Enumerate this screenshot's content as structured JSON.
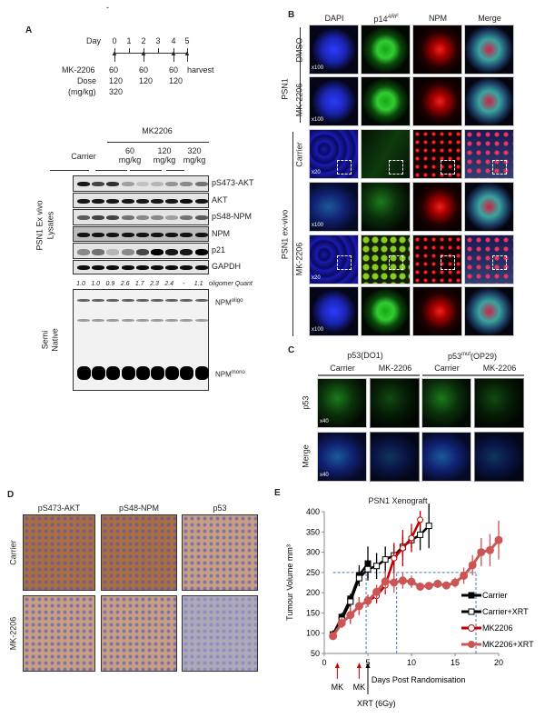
{
  "stray_mark": "-",
  "panelA": {
    "letter": "A",
    "timeline": {
      "day_label": "Day",
      "days": [
        "0",
        "1",
        "2",
        "3",
        "4",
        "5"
      ],
      "drug_label": "MK-2206",
      "dose_label": "Dose",
      "unit_label": "(mg/kg)",
      "doses": [
        [
          "60",
          "120",
          "320"
        ],
        [
          "60",
          "120"
        ],
        [
          "60",
          "120"
        ]
      ],
      "harvest": "harvest"
    },
    "group_header": "MK2206",
    "groups": [
      "Carrier",
      "60\nmg/kg",
      "120\nmg/kg",
      "320\nmg/kg"
    ],
    "side_label_1": "PSN1 Ex vivo",
    "side_label_2": "Lysates",
    "blots": [
      "pS473-AKT",
      "AKT",
      "pS48-NPM",
      "NPM",
      "p21",
      "GAPDH"
    ],
    "band_intensity": [
      [
        0.9,
        0.7,
        0.8,
        0.3,
        0.15,
        0.2,
        0.35,
        0.4,
        0.5
      ],
      [
        0.9,
        0.9,
        0.9,
        0.9,
        0.9,
        0.9,
        0.9,
        0.95,
        0.9
      ],
      [
        0.6,
        0.7,
        0.7,
        0.5,
        0.4,
        0.4,
        0.3,
        0.5,
        0.6
      ],
      [
        0.9,
        0.9,
        0.9,
        0.9,
        0.9,
        0.9,
        0.9,
        0.9,
        0.9
      ],
      [
        0.4,
        0.5,
        0.2,
        0.4,
        0.7,
        1,
        0.9,
        0.9,
        1
      ],
      [
        0.95,
        0.95,
        0.95,
        0.95,
        0.95,
        0.95,
        0.95,
        0.95,
        0.95
      ]
    ],
    "quant": [
      "1.0",
      "1.0",
      "0.9",
      "2.6",
      "1.7",
      "2.3",
      "2.4",
      "-",
      "1.1"
    ],
    "quant_label": "oligomer  Quant",
    "native_label_1": "Semi",
    "native_label_2": "Native",
    "npm_oligo": "NPM",
    "npm_oligo_sup": "oligo",
    "npm_mono": "NPM",
    "npm_mono_sup": "mono"
  },
  "panelB": {
    "letter": "B",
    "columns": [
      "DAPI",
      "p14",
      "NPM",
      "Merge"
    ],
    "p14_sup": "ARF",
    "cell_label": "PSN1",
    "exvivo_label": "PSN1  ex-vivo",
    "row_groups": [
      "DMSO",
      "MK-2206",
      "Carrier",
      "MK-2206"
    ],
    "magnifications": [
      "x100",
      "x100",
      "x20",
      "x100",
      "x20",
      "x100"
    ]
  },
  "panelC": {
    "letter": "C",
    "antibodies": [
      "p53(DO1)",
      "p53",
      "(OP29)"
    ],
    "mut_sup": "mut",
    "columns": [
      "Carrier",
      "MK-2206",
      "Carrier",
      "MK-2206"
    ],
    "rows": [
      "p53",
      "Merge"
    ],
    "magnification": "x40"
  },
  "panelD": {
    "letter": "D",
    "columns": [
      "pS473-AKT",
      "pS48-NPM",
      "p53"
    ],
    "rows": [
      "Carrier",
      "MK-2206"
    ]
  },
  "panelE": {
    "letter": "E",
    "chart_data": {
      "type": "line",
      "title": "PSN1  Xenograft",
      "xlabel": "Days Post Randomisation",
      "ylabel": "Tumour Volume mm³",
      "xlim": [
        0,
        20
      ],
      "ylim": [
        50,
        400
      ],
      "xticks": [
        0,
        5,
        10,
        15,
        20
      ],
      "yticks": [
        50,
        100,
        150,
        200,
        250,
        300,
        350,
        400
      ],
      "legend": "right",
      "series": [
        {
          "name": "Carrier",
          "color": "#000000",
          "marker": "filled-square",
          "x": [
            1,
            2,
            3,
            4,
            5
          ],
          "y": [
            97,
            140,
            185,
            243,
            272
          ],
          "err": [
            10,
            10,
            12,
            25,
            42
          ]
        },
        {
          "name": "Carrier+XRT",
          "color": "#000000",
          "marker": "open-square",
          "x": [
            1,
            2,
            3,
            4,
            5,
            6,
            7,
            8,
            9,
            10,
            11,
            12
          ],
          "y": [
            97,
            133,
            178,
            236,
            258,
            266,
            282,
            292,
            313,
            330,
            343,
            365
          ],
          "err": [
            8,
            10,
            12,
            20,
            22,
            32,
            32,
            25,
            25,
            20,
            38,
            55
          ]
        },
        {
          "name": "MK2206",
          "color": "#c00000",
          "marker": "open-circle",
          "x": [
            1,
            2,
            3,
            4,
            5,
            6,
            7,
            8,
            9,
            10,
            11
          ],
          "y": [
            95,
            125,
            145,
            167,
            180,
            192,
            218,
            285,
            310,
            335,
            380
          ],
          "err": [
            8,
            12,
            22,
            22,
            15,
            18,
            22,
            38,
            45,
            35,
            22
          ]
        },
        {
          "name": "MK2206+XRT",
          "color": "#cc5555",
          "marker": "filled-circle",
          "x": [
            1,
            2,
            3,
            4,
            5,
            6,
            7,
            8,
            9,
            10,
            11,
            12,
            13,
            14,
            15,
            16,
            17,
            18,
            19,
            20
          ],
          "y": [
            93,
            125,
            145,
            167,
            180,
            202,
            228,
            225,
            230,
            227,
            215,
            217,
            222,
            218,
            225,
            242,
            268,
            300,
            305,
            330
          ],
          "err": [
            8,
            12,
            22,
            22,
            15,
            18,
            25,
            25,
            20,
            15,
            8,
            8,
            10,
            10,
            12,
            20,
            25,
            35,
            40,
            48
          ]
        }
      ],
      "reference_lines": {
        "horizontal_y": 250,
        "vertical_x": [
          4.8,
          8.3,
          17.4
        ]
      },
      "annotations": [
        {
          "label": "MK",
          "x": 1.5,
          "color": "#cc0000"
        },
        {
          "label": "MK",
          "x": 4,
          "color": "#cc0000"
        },
        {
          "label": "XRT (6Gy)",
          "x": 5,
          "color": "#000000"
        }
      ]
    }
  }
}
